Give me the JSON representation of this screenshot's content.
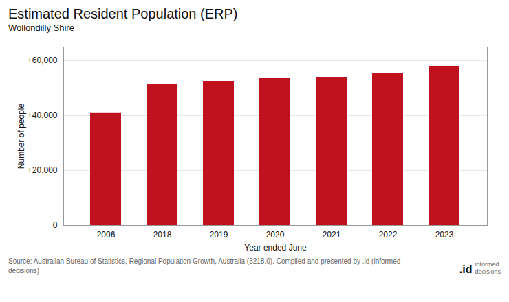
{
  "chart_data": {
    "type": "bar",
    "title": "Estimated Resident Population (ERP)",
    "subtitle": "Wollondilly Shire",
    "xlabel": "Year ended June",
    "ylabel": "Number of people",
    "categories": [
      "2006",
      "2018",
      "2019",
      "2020",
      "2021",
      "2022",
      "2023"
    ],
    "values": [
      41050,
      51500,
      52500,
      53500,
      54000,
      55500,
      58000
    ],
    "color": "#C0111F",
    "ylim": [
      0,
      65000
    ],
    "yticks": [
      0,
      {
        "value": 20000,
        "label": "+20,000"
      },
      {
        "value": 40000,
        "label": "+40,000"
      },
      {
        "value": 60000,
        "label": "+60,000"
      }
    ],
    "grid": true,
    "source": "Source: Australian Bureau of Statistics, Regional Population Growth, Australia (3218.0). Compiled and presented by .id (informed\ndecisions)",
    "annotations": [
      ".id",
      "informed\ndecisions"
    ]
  }
}
